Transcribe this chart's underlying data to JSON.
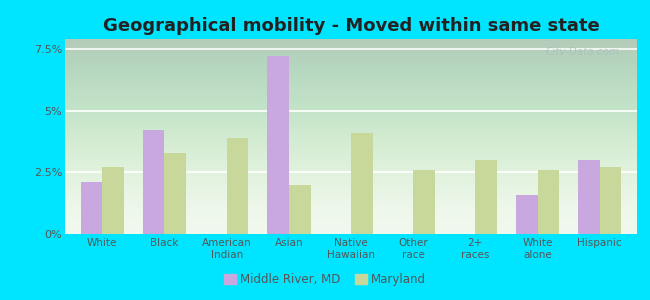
{
  "title": "Geographical mobility - Moved within same state",
  "categories": [
    "White",
    "Black",
    "American\nIndian",
    "Asian",
    "Native\nHawaiian",
    "Other\nrace",
    "2+\nraces",
    "White\nalone",
    "Hispanic"
  ],
  "middle_river": [
    2.1,
    4.2,
    0.0,
    7.2,
    0.0,
    0.0,
    0.0,
    1.6,
    3.0
  ],
  "maryland": [
    2.7,
    3.3,
    3.9,
    2.0,
    4.1,
    2.6,
    3.0,
    2.6,
    2.7
  ],
  "color_middle_river": "#c9a8e0",
  "color_maryland": "#c8d89a",
  "bg_color_plot_top": "#f0f8ee",
  "bg_color_plot_bottom": "#d4edcc",
  "bg_color_figure": "#00e5ff",
  "ylim": [
    0,
    7.9
  ],
  "yticks": [
    0,
    2.5,
    5.0,
    7.5
  ],
  "ytick_labels": [
    "0%",
    "2.5%",
    "5%",
    "7.5%"
  ],
  "grid_color": "#ffffff",
  "title_fontsize": 13,
  "legend_label_mr": "Middle River, MD",
  "legend_label_md": "Maryland",
  "bar_width": 0.35
}
